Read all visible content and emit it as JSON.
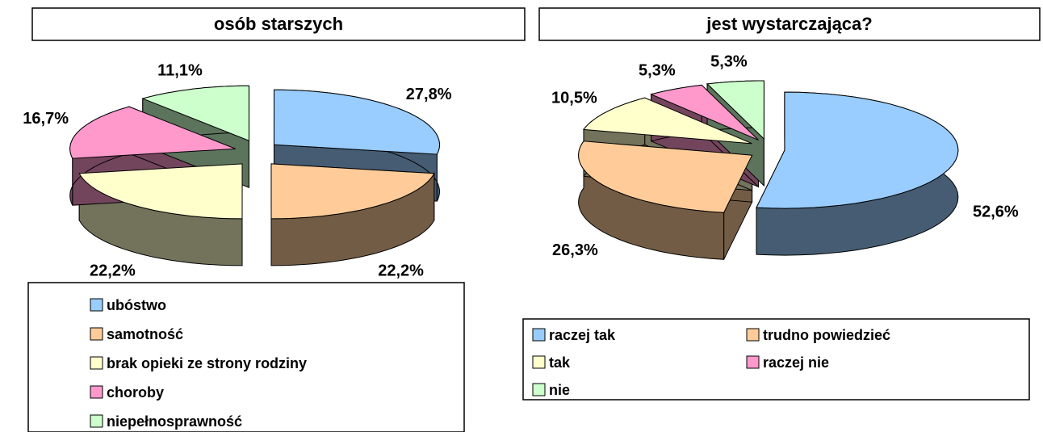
{
  "chart_data": [
    {
      "type": "pie",
      "title": "osób starszych",
      "categories": [
        "ubóstwo",
        "samotność",
        "brak opieki ze strony rodziny",
        "choroby",
        "niepełnosprawność"
      ],
      "values": [
        27.8,
        22.2,
        22.2,
        16.7,
        11.1
      ],
      "value_labels": [
        "27,8%",
        "22,2%",
        "22,2%",
        "16,7%",
        "11,1%"
      ],
      "colors": [
        "#99ccff",
        "#ffcc99",
        "#ffffcc",
        "#ff99cc",
        "#ccffcc"
      ]
    },
    {
      "type": "pie",
      "title": "jest wystarczająca?",
      "categories": [
        "raczej tak",
        "trudno powiedzieć",
        "tak",
        "raczej nie",
        "nie"
      ],
      "values": [
        52.6,
        26.3,
        10.5,
        5.3,
        5.3
      ],
      "value_labels": [
        "52,6%",
        "26,3%",
        "10,5%",
        "5,3%",
        "5,3%"
      ],
      "colors": [
        "#99ccff",
        "#ffcc99",
        "#ffffcc",
        "#ff99cc",
        "#ccffcc"
      ]
    }
  ]
}
